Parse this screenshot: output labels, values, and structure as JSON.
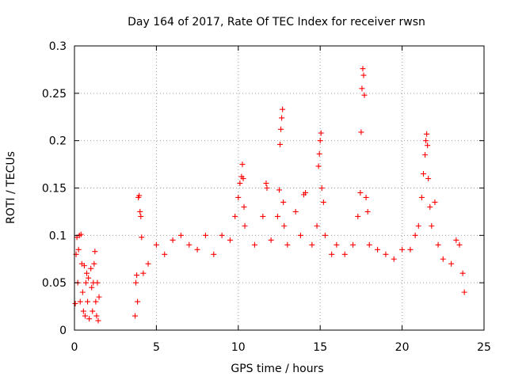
{
  "chart_data": {
    "type": "scatter",
    "title": "Day 164 of 2017, Rate Of TEC Index for receiver rwsn",
    "xlabel": "GPS time / hours",
    "ylabel": "ROTI / TECUs",
    "xlim": [
      0,
      25
    ],
    "ylim": [
      0,
      0.3
    ],
    "x_ticks": [
      "0",
      "5",
      "10",
      "15",
      "20",
      "25"
    ],
    "y_ticks": [
      "0",
      "0.05",
      "0.1",
      "0.15",
      "0.2",
      "0.25",
      "0.3"
    ],
    "grid": true,
    "legend": "none",
    "marker": "plus",
    "series": [
      {
        "color": "#ff0000",
        "points": [
          [
            0.05,
            0.028
          ],
          [
            0.1,
            0.08
          ],
          [
            0.15,
            0.098
          ],
          [
            0.2,
            0.05
          ],
          [
            0.25,
            0.085
          ],
          [
            0.3,
            0.1
          ],
          [
            0.35,
            0.03
          ],
          [
            0.4,
            0.101
          ],
          [
            0.45,
            0.07
          ],
          [
            0.5,
            0.04
          ],
          [
            0.55,
            0.02
          ],
          [
            0.6,
            0.068
          ],
          [
            0.65,
            0.015
          ],
          [
            0.7,
            0.05
          ],
          [
            0.75,
            0.06
          ],
          [
            0.8,
            0.03
          ],
          [
            0.85,
            0.055
          ],
          [
            0.9,
            0.012
          ],
          [
            1.0,
            0.065
          ],
          [
            1.05,
            0.045
          ],
          [
            1.1,
            0.02
          ],
          [
            1.15,
            0.05
          ],
          [
            1.2,
            0.07
          ],
          [
            1.25,
            0.083
          ],
          [
            1.3,
            0.03
          ],
          [
            1.35,
            0.015
          ],
          [
            1.4,
            0.05
          ],
          [
            1.45,
            0.01
          ],
          [
            1.5,
            0.035
          ],
          [
            3.7,
            0.015
          ],
          [
            3.75,
            0.05
          ],
          [
            3.8,
            0.058
          ],
          [
            3.85,
            0.03
          ],
          [
            3.9,
            0.14
          ],
          [
            3.95,
            0.142
          ],
          [
            4.0,
            0.125
          ],
          [
            4.05,
            0.12
          ],
          [
            4.1,
            0.098
          ],
          [
            4.2,
            0.06
          ],
          [
            4.5,
            0.07
          ],
          [
            5.0,
            0.09
          ],
          [
            5.5,
            0.08
          ],
          [
            6.0,
            0.095
          ],
          [
            6.5,
            0.1
          ],
          [
            7.0,
            0.09
          ],
          [
            7.5,
            0.085
          ],
          [
            8.0,
            0.1
          ],
          [
            8.5,
            0.08
          ],
          [
            9.0,
            0.1
          ],
          [
            9.5,
            0.095
          ],
          [
            9.8,
            0.12
          ],
          [
            10.0,
            0.14
          ],
          [
            10.1,
            0.155
          ],
          [
            10.2,
            0.162
          ],
          [
            10.25,
            0.175
          ],
          [
            10.3,
            0.16
          ],
          [
            10.35,
            0.13
          ],
          [
            10.4,
            0.11
          ],
          [
            11.0,
            0.09
          ],
          [
            11.5,
            0.12
          ],
          [
            11.7,
            0.155
          ],
          [
            11.75,
            0.15
          ],
          [
            12.0,
            0.095
          ],
          [
            12.4,
            0.12
          ],
          [
            12.5,
            0.148
          ],
          [
            12.55,
            0.196
          ],
          [
            12.6,
            0.212
          ],
          [
            12.65,
            0.224
          ],
          [
            12.7,
            0.233
          ],
          [
            12.75,
            0.135
          ],
          [
            12.8,
            0.11
          ],
          [
            13.0,
            0.09
          ],
          [
            13.5,
            0.125
          ],
          [
            13.8,
            0.1
          ],
          [
            14.0,
            0.143
          ],
          [
            14.1,
            0.145
          ],
          [
            14.5,
            0.09
          ],
          [
            14.8,
            0.11
          ],
          [
            14.9,
            0.173
          ],
          [
            14.95,
            0.186
          ],
          [
            15.0,
            0.2
          ],
          [
            15.05,
            0.208
          ],
          [
            15.1,
            0.15
          ],
          [
            15.2,
            0.135
          ],
          [
            15.3,
            0.1
          ],
          [
            15.7,
            0.08
          ],
          [
            16.0,
            0.09
          ],
          [
            16.5,
            0.08
          ],
          [
            17.0,
            0.09
          ],
          [
            17.3,
            0.12
          ],
          [
            17.45,
            0.145
          ],
          [
            17.5,
            0.209
          ],
          [
            17.55,
            0.255
          ],
          [
            17.6,
            0.276
          ],
          [
            17.65,
            0.269
          ],
          [
            17.7,
            0.248
          ],
          [
            17.8,
            0.14
          ],
          [
            17.9,
            0.125
          ],
          [
            18.0,
            0.09
          ],
          [
            18.5,
            0.085
          ],
          [
            19.0,
            0.08
          ],
          [
            19.5,
            0.075
          ],
          [
            20.0,
            0.085
          ],
          [
            20.5,
            0.085
          ],
          [
            20.8,
            0.1
          ],
          [
            21.0,
            0.11
          ],
          [
            21.2,
            0.14
          ],
          [
            21.3,
            0.165
          ],
          [
            21.4,
            0.185
          ],
          [
            21.45,
            0.2
          ],
          [
            21.5,
            0.207
          ],
          [
            21.55,
            0.195
          ],
          [
            21.6,
            0.16
          ],
          [
            21.7,
            0.13
          ],
          [
            21.8,
            0.11
          ],
          [
            22.0,
            0.135
          ],
          [
            22.2,
            0.09
          ],
          [
            22.5,
            0.075
          ],
          [
            23.0,
            0.07
          ],
          [
            23.3,
            0.095
          ],
          [
            23.5,
            0.09
          ],
          [
            23.7,
            0.06
          ],
          [
            23.8,
            0.04
          ]
        ]
      }
    ]
  }
}
